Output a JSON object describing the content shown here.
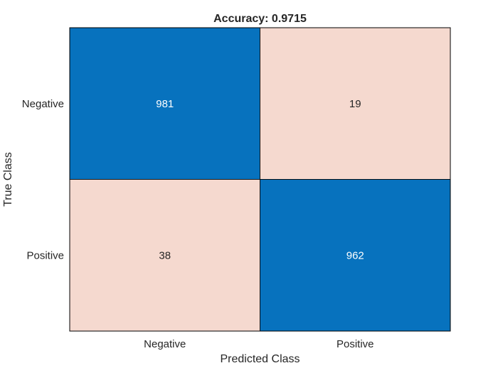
{
  "chart_data": {
    "type": "heatmap",
    "title": "Accuracy: 0.9715",
    "xlabel": "Predicted Class",
    "ylabel": "True Class",
    "x_categories": [
      "Negative",
      "Positive"
    ],
    "y_categories": [
      "Negative",
      "Positive"
    ],
    "values": [
      [
        981,
        19
      ],
      [
        38,
        962
      ]
    ],
    "colors": {
      "diagonal": "#0772BE",
      "off_diagonal": "#F5D9CF",
      "text_dark_cell": "#FFFFFF",
      "text_light_cell": "#262626",
      "axis_text": "#262626",
      "border": "#000000"
    }
  }
}
